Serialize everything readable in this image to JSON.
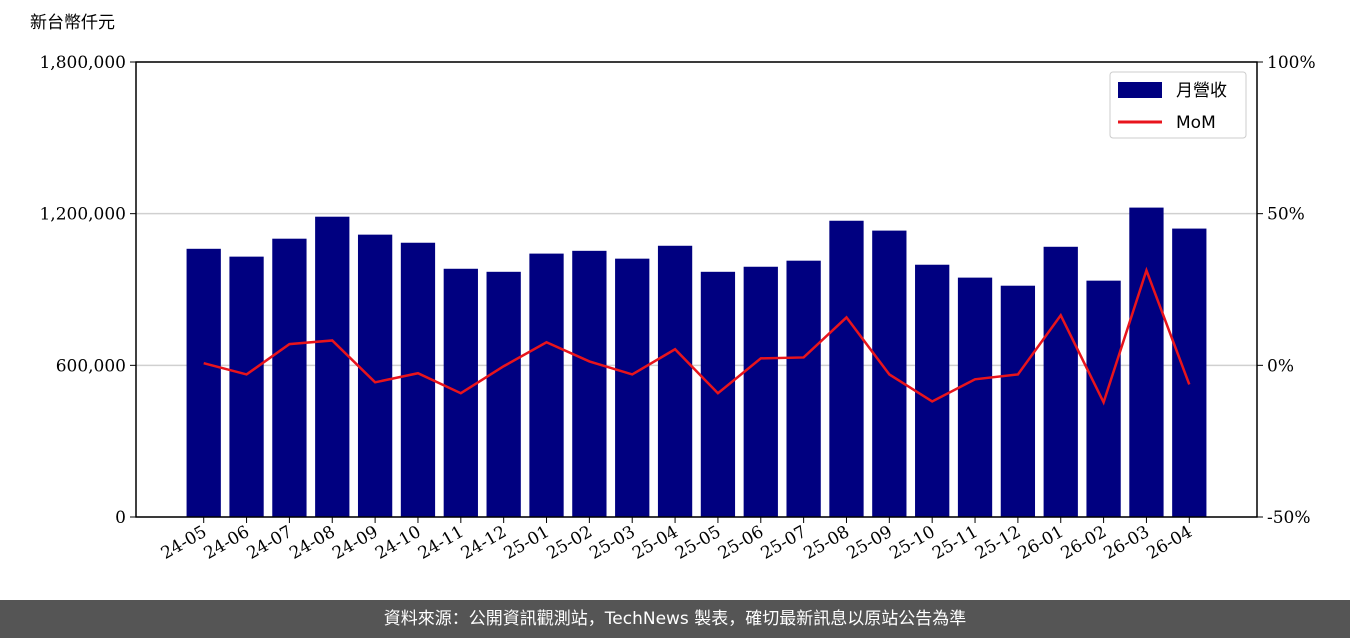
{
  "chart_data": {
    "type": "bar-line",
    "ylabel": "新台幣仟元",
    "categories": [
      "24-05",
      "24-06",
      "24-07",
      "24-08",
      "24-09",
      "24-10",
      "24-11",
      "24-12",
      "25-01",
      "25-02",
      "25-03",
      "25-04",
      "25-05",
      "25-06",
      "25-07",
      "25-08",
      "25-09",
      "25-10",
      "25-11",
      "25-12",
      "26-01",
      "26-02",
      "26-03",
      "26-04"
    ],
    "series": [
      {
        "name": "月營收",
        "type": "bar",
        "color": "#000080",
        "values": [
          1061000,
          1030000,
          1101000,
          1188000,
          1117000,
          1085000,
          982000,
          970000,
          1042000,
          1053000,
          1022000,
          1073000,
          970000,
          990000,
          1014000,
          1172000,
          1133000,
          998000,
          947000,
          915000,
          1069000,
          935000,
          1224000,
          1141000
        ]
      },
      {
        "name": "MoM",
        "type": "line",
        "axis": "y2",
        "color": "#e8141c",
        "values": [
          0.7,
          -3,
          7,
          8.2,
          -5.6,
          -2.6,
          -9.2,
          -0.3,
          7.6,
          1.3,
          -3,
          5.3,
          -9.2,
          2.3,
          2.6,
          15.8,
          -3,
          -11.9,
          -4.6,
          -3,
          16.5,
          -12.2,
          31.3,
          -6.3
        ]
      }
    ],
    "ylim": [
      0,
      1800000
    ],
    "yticks": [
      {
        "value": 0,
        "label": "0"
      },
      {
        "value": 600000,
        "label": "600,000"
      },
      {
        "value": 1200000,
        "label": "1,200,000"
      },
      {
        "value": 1800000,
        "label": "1,800,000"
      }
    ],
    "y2lim": [
      -50,
      100
    ],
    "y2ticks": [
      {
        "value": -50,
        "label": "-50%"
      },
      {
        "value": 0,
        "label": "0%"
      },
      {
        "value": 50,
        "label": "50%"
      },
      {
        "value": 100,
        "label": "100%"
      }
    ],
    "grid": true,
    "legend": "upper right"
  },
  "footer": "資料來源：公開資訊觀測站，TechNews 製表，確切最新訊息以原站公告為準"
}
